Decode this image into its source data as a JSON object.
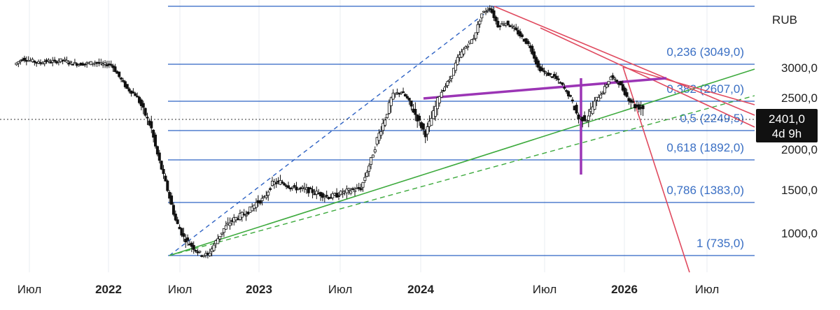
{
  "chart_data": {
    "type": "candlestick",
    "currency": "RUB",
    "x_ticks": [
      {
        "label": "Июл",
        "bold": false
      },
      {
        "label": "2022",
        "bold": true
      },
      {
        "label": "Июл",
        "bold": false
      },
      {
        "label": "2023",
        "bold": true
      },
      {
        "label": "Июл",
        "bold": false
      },
      {
        "label": "2024",
        "bold": true
      },
      {
        "label": "Июл",
        "bold": false
      },
      {
        "label": "2026",
        "bold": true
      },
      {
        "label": "Июл",
        "bold": false
      }
    ],
    "y_ticks": [
      {
        "label": "3000,0",
        "value": 3000
      },
      {
        "label": "2500,0",
        "value": 2500
      },
      {
        "label": "2000,0",
        "value": 2000
      },
      {
        "label": "1500,0",
        "value": 1500
      },
      {
        "label": "1000,0",
        "value": 1000
      }
    ],
    "fib_levels": [
      {
        "ratio": "0,236",
        "value": 3049,
        "label": "0,236 (3049,0)"
      },
      {
        "ratio": "0,382",
        "value": 2607,
        "label": "0,382 (2607,0)"
      },
      {
        "ratio": "0,5",
        "value": 2249.5,
        "label": "0,5 (2249,5)"
      },
      {
        "ratio": "0,618",
        "value": 1892,
        "label": "0,618 (1892,0)"
      },
      {
        "ratio": "0,786",
        "value": 1383,
        "label": "0,786 (1383,0)"
      },
      {
        "ratio": "1",
        "value": 735,
        "label": "1 (735,0)"
      }
    ],
    "last_price": {
      "label": "2401,0",
      "value": 2401,
      "timer": "4d 9h"
    },
    "series_closes": [
      3050,
      3150,
      3120,
      3080,
      3110,
      3100,
      3130,
      3080,
      3060,
      3070,
      3090,
      3050,
      3060,
      2850,
      2650,
      2550,
      2380,
      2200,
      1850,
      1500,
      1150,
      950,
      850,
      760,
      735,
      900,
      1050,
      1150,
      1200,
      1250,
      1350,
      1400,
      1580,
      1600,
      1550,
      1520,
      1510,
      1480,
      1450,
      1420,
      1440,
      1480,
      1500,
      1520,
      1800,
      2100,
      2300,
      2550,
      2600,
      2450,
      2300,
      2150,
      2350,
      2600,
      2800,
      3150,
      3350,
      3500,
      3900,
      4000,
      3700,
      3750,
      3650,
      3500,
      3350,
      3000,
      2900,
      2850,
      2700,
      2500,
      2300,
      2300,
      2450,
      2600,
      2850,
      2750,
      2520,
      2420,
      2401
    ],
    "colors": {
      "fib_line": "#2f63c4",
      "fib_label": "#3a6fc4",
      "resistance_lines": "#e04a5f",
      "support_line": "#3daa3d",
      "neckline": "#9b35b5",
      "candles": "#111111",
      "badge_bg": "#111111"
    },
    "grid": false
  }
}
